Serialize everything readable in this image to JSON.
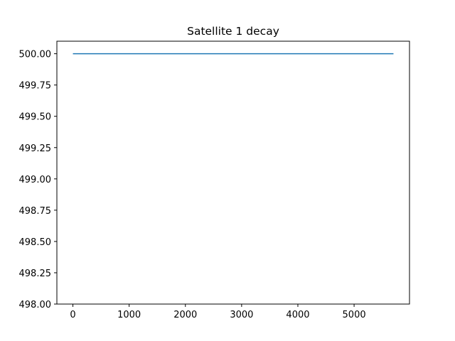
{
  "chart_data": {
    "type": "line",
    "title": "Satellite 1 decay",
    "xlabel": "",
    "ylabel": "",
    "xlim": [
      -285,
      5985
    ],
    "ylim": [
      498.0,
      500.1
    ],
    "xticks": [
      0,
      1000,
      2000,
      3000,
      4000,
      5000
    ],
    "xtick_labels": [
      "0",
      "1000",
      "2000",
      "3000",
      "4000",
      "5000"
    ],
    "yticks": [
      498.0,
      498.25,
      498.5,
      498.75,
      499.0,
      499.25,
      499.5,
      499.75,
      500.0
    ],
    "ytick_labels": [
      "498.00",
      "498.25",
      "498.50",
      "498.75",
      "499.00",
      "499.25",
      "499.50",
      "499.75",
      "500.00"
    ],
    "grid": false,
    "series": [
      {
        "color": "#1f77b4",
        "x": [
          0,
          5700
        ],
        "y": [
          500.0,
          500.0
        ]
      }
    ]
  }
}
